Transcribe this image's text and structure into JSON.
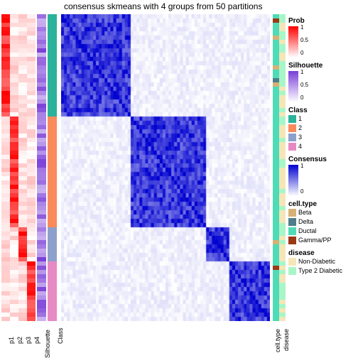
{
  "title": "consensus skmeans with 4 groups from 50 partitions",
  "n_rows": 72,
  "prob_columns": [
    "p1",
    "p2",
    "p3",
    "p4"
  ],
  "axis_labels": {
    "silhouette": "Silhouette",
    "class": "Class",
    "cell_type": "cell.type",
    "disease": "disease"
  },
  "colors": {
    "prob_low": "#ffffff",
    "prob_high": "#ff0000",
    "sil_low": "#ffffff",
    "sil_high": "#7a3dd8",
    "cons_low": "#ffffff",
    "cons_high": "#0000d0",
    "class": {
      "1": "#2bb29a",
      "2": "#fa8a5b",
      "3": "#8da0cb",
      "4": "#e78ac3"
    },
    "cell_type": {
      "Beta": "#d6b176",
      "Delta": "#4f7d8a",
      "Ductal": "#4edbb6",
      "Gamma/PP": "#9a3915"
    },
    "disease": {
      "Non-Diabetic": "#f5e5b8",
      "Type 2 Diabetic": "#a9f5c8"
    }
  },
  "class_blocks": [
    {
      "class": "1",
      "len": 24
    },
    {
      "class": "2",
      "len": 26
    },
    {
      "class": "3",
      "len": 8
    },
    {
      "class": "4",
      "len": 14
    }
  ],
  "legends": {
    "prob": {
      "title": "Prob",
      "ticks": [
        "1",
        "0.5",
        "0"
      ]
    },
    "silhouette": {
      "title": "Silhouette",
      "ticks": [
        "1",
        "0.5",
        "0"
      ]
    },
    "class": {
      "title": "Class",
      "items": [
        "1",
        "2",
        "3",
        "4"
      ]
    },
    "consensus": {
      "title": "Consensus",
      "ticks": [
        "1",
        "0"
      ]
    },
    "cell_type": {
      "title": "cell.type",
      "items": [
        "Beta",
        "Delta",
        "Ductal",
        "Gamma/PP"
      ]
    },
    "disease": {
      "title": "disease",
      "items": [
        "Non-Diabetic",
        "Type 2 Diabetic"
      ]
    }
  }
}
